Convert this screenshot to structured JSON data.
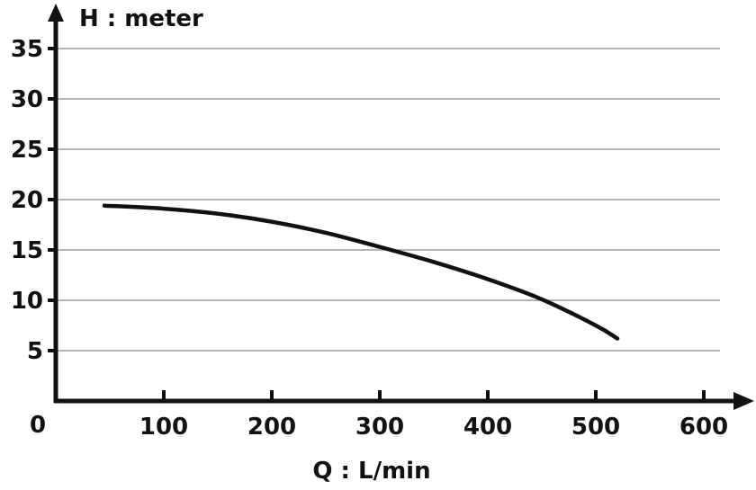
{
  "chart_data": {
    "type": "line",
    "xlabel": "Q : L/min",
    "ylabel": "H : meter",
    "origin_label": "0",
    "xlim": [
      0,
      600
    ],
    "ylim": [
      0,
      35
    ],
    "x_ticks": [
      "100",
      "200",
      "300",
      "400",
      "500",
      "600"
    ],
    "y_ticks": [
      "5",
      "10",
      "15",
      "20",
      "25",
      "30",
      "35"
    ],
    "grid": "horizontal",
    "series": [
      {
        "x": [
          45,
          100,
          150,
          200,
          250,
          300,
          350,
          400,
          450,
          500,
          520
        ],
        "y": [
          19.4,
          19.1,
          18.6,
          17.8,
          16.7,
          15.3,
          13.8,
          12.1,
          10.1,
          7.5,
          6.2
        ]
      }
    ]
  }
}
